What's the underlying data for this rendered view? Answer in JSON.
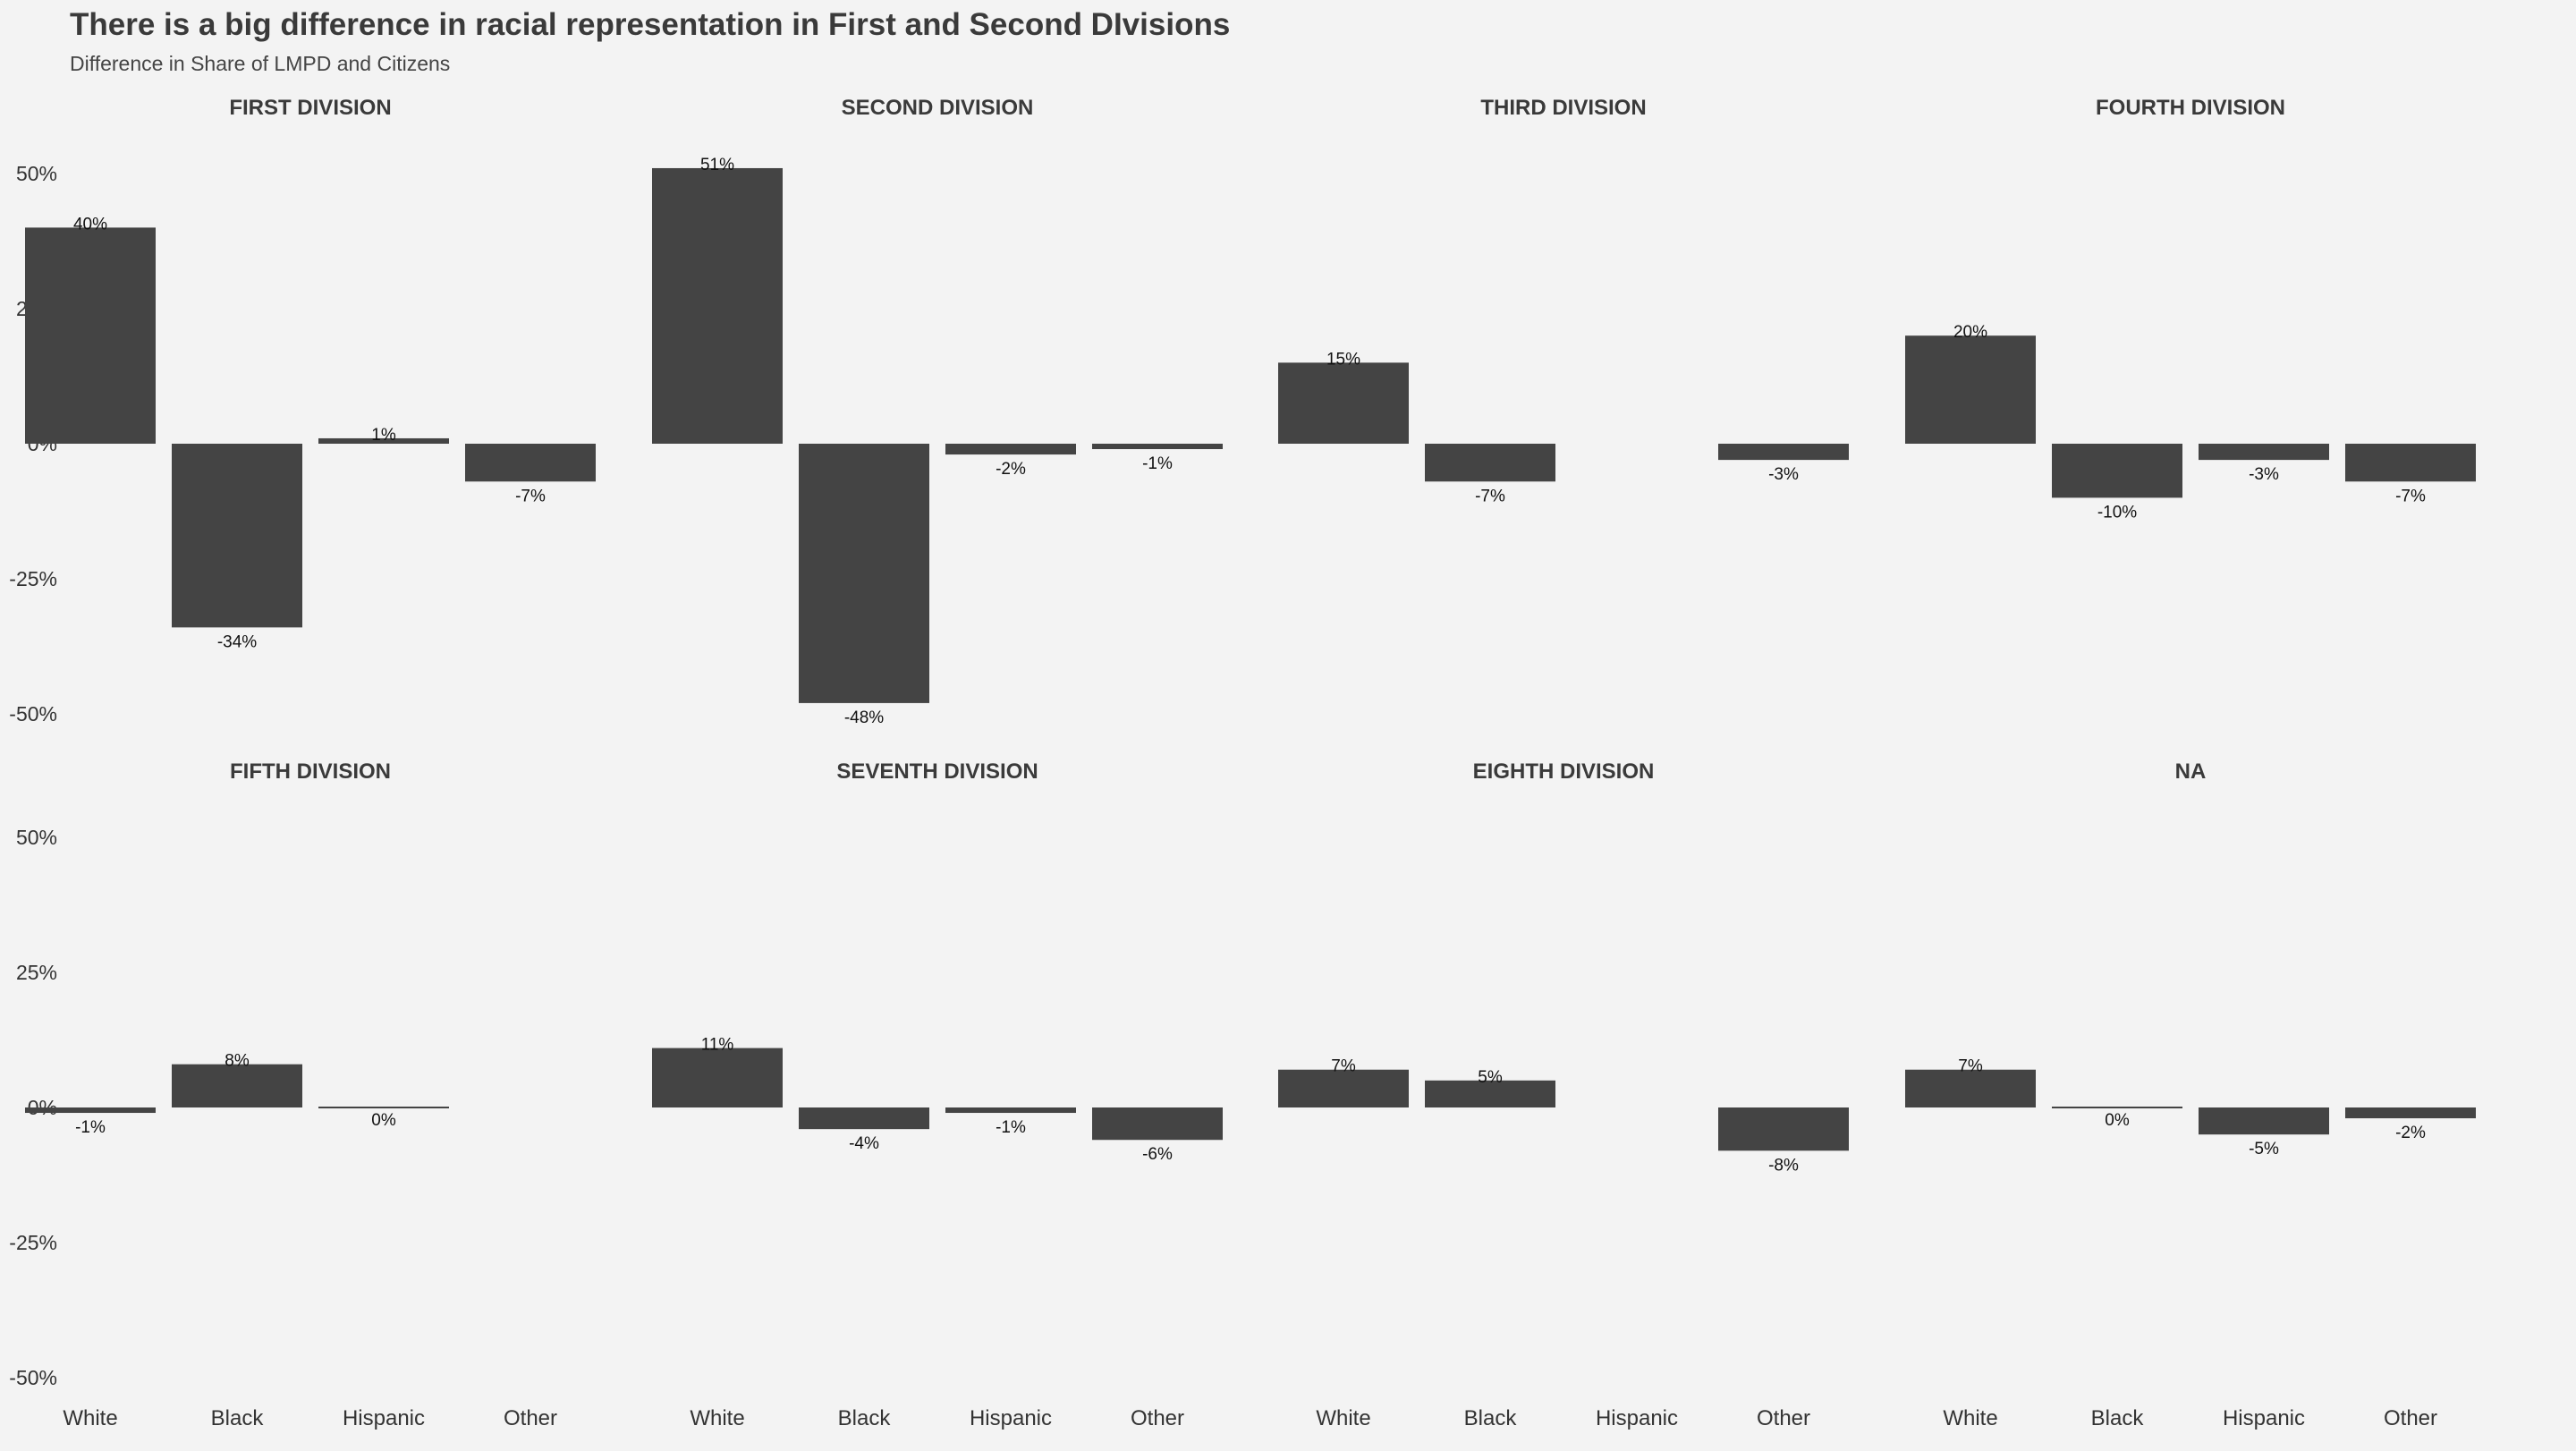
{
  "title": "There is a big difference in racial representation in First and Second DIvisions",
  "subtitle": "Difference in Share of LMPD and Citizens",
  "colors": {
    "background": "#f3f3f3",
    "bar": "#444444",
    "text": "#333333"
  },
  "chart_data": {
    "type": "bar",
    "title": "There is a big difference in racial representation in First and Second DIvisions",
    "subtitle": "Difference in Share of LMPD and Citizens",
    "xlabel": "",
    "ylabel": "",
    "categories": [
      "White",
      "Black",
      "Hispanic",
      "Other"
    ],
    "ylim": [
      -0.55,
      0.55
    ],
    "yticks": [
      0.5,
      0.25,
      0,
      -0.25,
      -0.5
    ],
    "ytick_labels": [
      "50%",
      "25%",
      "0%",
      "-25%",
      "-50%"
    ],
    "grid": false,
    "legend": "none",
    "facets": [
      {
        "name": "FIRST DIVISION",
        "values": [
          0.4,
          -0.34,
          0.01,
          -0.07
        ],
        "labels": [
          "40%",
          "-34%",
          "1%",
          "-7%"
        ]
      },
      {
        "name": "SECOND DIVISION",
        "values": [
          0.51,
          -0.48,
          -0.02,
          -0.01
        ],
        "labels": [
          "51%",
          "-48%",
          "-2%",
          "-1%"
        ]
      },
      {
        "name": "THIRD DIVISION",
        "values": [
          0.15,
          -0.07,
          null,
          -0.03
        ],
        "labels": [
          "15%",
          "-7%",
          null,
          "-3%"
        ]
      },
      {
        "name": "FOURTH DIVISION",
        "values": [
          0.2,
          -0.1,
          -0.03,
          -0.07
        ],
        "labels": [
          "20%",
          "-10%",
          "-3%",
          "-7%"
        ]
      },
      {
        "name": "FIFTH DIVISION",
        "values": [
          -0.01,
          0.08,
          0.0,
          null
        ],
        "labels": [
          "-1%",
          "8%",
          "0%",
          null
        ]
      },
      {
        "name": "SEVENTH DIVISION",
        "values": [
          0.11,
          -0.04,
          -0.01,
          -0.06
        ],
        "labels": [
          "11%",
          "-4%",
          "-1%",
          "-6%"
        ]
      },
      {
        "name": "EIGHTH DIVISION",
        "values": [
          0.07,
          0.05,
          null,
          -0.08
        ],
        "labels": [
          "7%",
          "5%",
          null,
          "-8%"
        ]
      },
      {
        "name": "NA",
        "values": [
          0.07,
          0.0,
          -0.05,
          -0.02
        ],
        "labels": [
          "7%",
          "0%",
          "-5%",
          "-2%"
        ]
      }
    ]
  }
}
